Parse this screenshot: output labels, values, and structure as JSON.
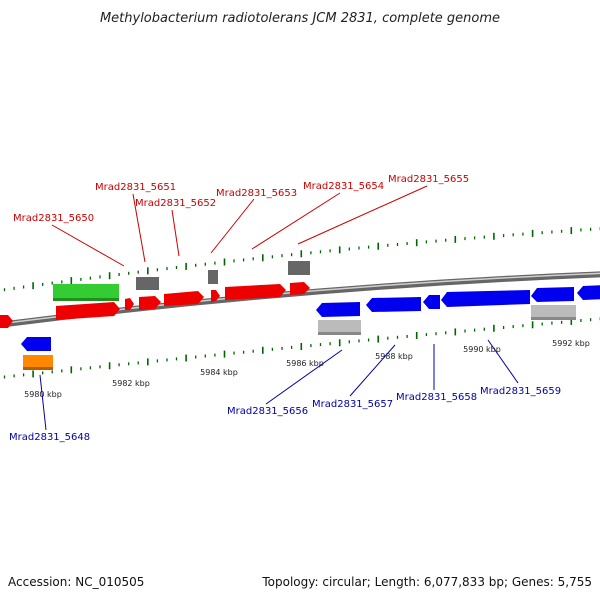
{
  "title": "Methylobacterium radiotolerans JCM 2831, complete genome",
  "footer": {
    "accession": "Accession: NC_010505",
    "summary": "Topology: circular; Length: 6,077,833 bp; Genes: 5,755"
  },
  "colors": {
    "forward_cds": "#ee0000",
    "reverse_cds": "#0000ee",
    "forward_label": "#cc0000",
    "reverse_label": "#0000aa",
    "green_feature": "#33cc33",
    "orange_feature": "#ff8800",
    "gray_dark": "#666666",
    "gray_light": "#bbbbbb",
    "backbone": "#888888",
    "tick": "#006600"
  },
  "ticks": [
    {
      "label": "5980 kbp"
    },
    {
      "label": "5982 kbp"
    },
    {
      "label": "5984 kbp"
    },
    {
      "label": "5986 kbp"
    },
    {
      "label": "5988 kbp"
    },
    {
      "label": "5990 kbp"
    },
    {
      "label": "5992 kbp"
    }
  ],
  "labels": {
    "forward": [
      {
        "text": "Mrad2831_5650"
      },
      {
        "text": "Mrad2831_5651"
      },
      {
        "text": "Mrad2831_5652"
      },
      {
        "text": "Mrad2831_5653"
      },
      {
        "text": "Mrad2831_5654"
      },
      {
        "text": "Mrad2831_5655"
      }
    ],
    "reverse": [
      {
        "text": "Mrad2831_5648"
      },
      {
        "text": "Mrad2831_5656"
      },
      {
        "text": "Mrad2831_5657"
      },
      {
        "text": "Mrad2831_5658"
      },
      {
        "text": "Mrad2831_5659"
      }
    ]
  }
}
